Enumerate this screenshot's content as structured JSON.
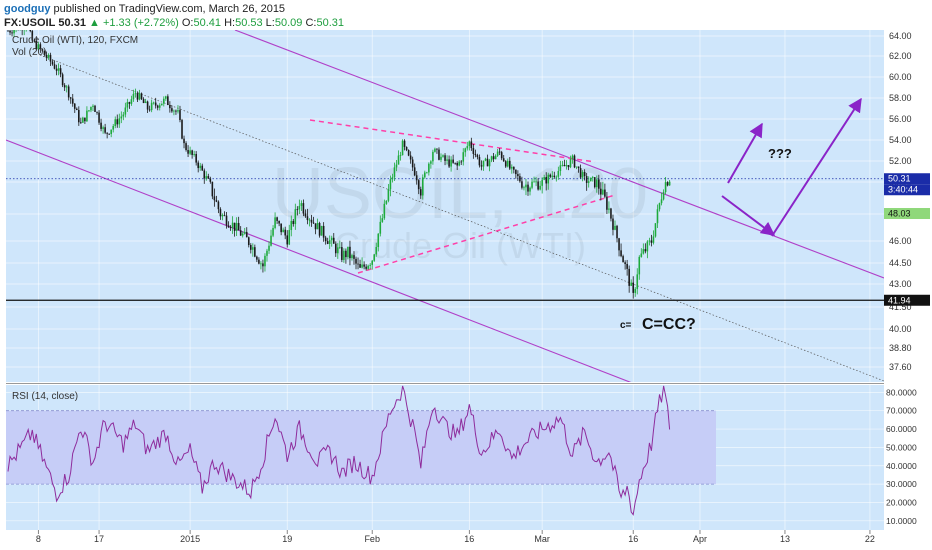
{
  "header": {
    "author": "goodguy",
    "published_text": "published on TradingView.com, March 26, 2015",
    "symbol": "FX:USOIL",
    "last": "50.31",
    "change": "+1.33 (+2.72%)",
    "ohlc": [
      {
        "label": "O:",
        "value": "50.41"
      },
      {
        "label": "H:",
        "value": "50.53"
      },
      {
        "label": "L:",
        "value": "50.09"
      },
      {
        "label": "C:",
        "value": "50.31"
      }
    ]
  },
  "price_pane": {
    "title": "Crude Oil (WTI), 120, FXCM",
    "vol_label": "Vol (20)",
    "watermark_symbol": "USOIL, 120",
    "watermark_name": "Crude Oil (WTI)",
    "badge_price": "50.31",
    "badge_time": "3:40:44",
    "badge_secondary": "48.03",
    "badge_support": "41.94"
  },
  "rsi_pane": {
    "title": "RSI (14, close)"
  },
  "annotations": {
    "question": "???",
    "c_small": "c=",
    "c_big": "C=CC?"
  },
  "colors": {
    "pane_bg": "#cfe6fb",
    "channel": "#b040c8",
    "triangle": "#ff3fa8",
    "arrow": "#8a24c8",
    "rsi_line": "#8e2c9c",
    "rsi_band": "#c6cdf7",
    "candle_up": "#1eaa3c",
    "candle_down": "#1a1a1a",
    "last_price": "#1a2ca8"
  },
  "chart_data": [
    {
      "type": "candlestick",
      "title": "Crude Oil (WTI), 120, FXCM",
      "x_ticks": [
        "8",
        "17",
        "2015",
        "19",
        "Feb",
        "16",
        "Mar",
        "16",
        "Apr",
        "13",
        "22"
      ],
      "y_ticks": [
        "64.00",
        "62.00",
        "60.00",
        "58.00",
        "56.00",
        "54.00",
        "52.00",
        "50.00",
        "48.00",
        "46.00",
        "44.50",
        "43.00",
        "41.50",
        "40.00",
        "38.80",
        "37.60"
      ],
      "ylim": [
        36.5,
        65
      ],
      "path_x_day": [
        0,
        3,
        4,
        8,
        10,
        12,
        14,
        16,
        19,
        21,
        23,
        26,
        28,
        29,
        31,
        33,
        35,
        37,
        40,
        42,
        44,
        46,
        48,
        51,
        53,
        55,
        56,
        58,
        60,
        63,
        65,
        67,
        68,
        70,
        72,
        74,
        76,
        78,
        81,
        83,
        85,
        88,
        91,
        93,
        95,
        97,
        99,
        101,
        102,
        103,
        104,
        106,
        107,
        108,
        109
      ],
      "path_y": [
        64.5,
        65.1,
        63.5,
        60.8,
        58.5,
        55.5,
        57.5,
        54.5,
        56.5,
        58.5,
        57.0,
        57.8,
        56.5,
        53.5,
        52.0,
        50.0,
        48.0,
        47.2,
        45.8,
        44.3,
        47.5,
        46.2,
        48.8,
        47.0,
        46.0,
        45.0,
        45.2,
        44.0,
        44.8,
        50.0,
        53.5,
        51.0,
        49.5,
        53.0,
        52.0,
        51.5,
        53.8,
        51.5,
        52.8,
        51.0,
        49.8,
        50.0,
        51.2,
        52.1,
        50.2,
        50.0,
        48.3,
        45.2,
        43.8,
        42.1,
        44.8,
        46.0,
        48.0,
        49.8,
        50.31
      ],
      "last_price": 50.31,
      "support": 41.94
    },
    {
      "type": "line",
      "title": "RSI (14, close)",
      "y_ticks": [
        "80.0000",
        "70.0000",
        "60.0000",
        "50.0000",
        "40.0000",
        "30.0000",
        "20.0000",
        "10.0000"
      ],
      "ylim": [
        5,
        84
      ],
      "band": [
        30,
        70
      ],
      "x_day": [
        0,
        4,
        8,
        10,
        12,
        14,
        16,
        19,
        21,
        23,
        26,
        28,
        30,
        32,
        34,
        37,
        40,
        42,
        44,
        46,
        48,
        51,
        53,
        55,
        57,
        60,
        63,
        65,
        67,
        68,
        70,
        72,
        74,
        76,
        78,
        81,
        83,
        85,
        88,
        91,
        93,
        95,
        97,
        99,
        101,
        102,
        103,
        104,
        106,
        107,
        108,
        109
      ],
      "values": [
        40,
        58,
        25,
        35,
        62,
        42,
        64,
        52,
        63,
        48,
        58,
        40,
        48,
        28,
        42,
        33,
        26,
        44,
        68,
        46,
        60,
        42,
        48,
        36,
        42,
        34,
        70,
        82,
        58,
        40,
        74,
        62,
        56,
        72,
        47,
        60,
        44,
        52,
        60,
        66,
        46,
        58,
        42,
        48,
        22,
        28,
        14,
        32,
        52,
        70,
        82,
        62
      ]
    }
  ]
}
